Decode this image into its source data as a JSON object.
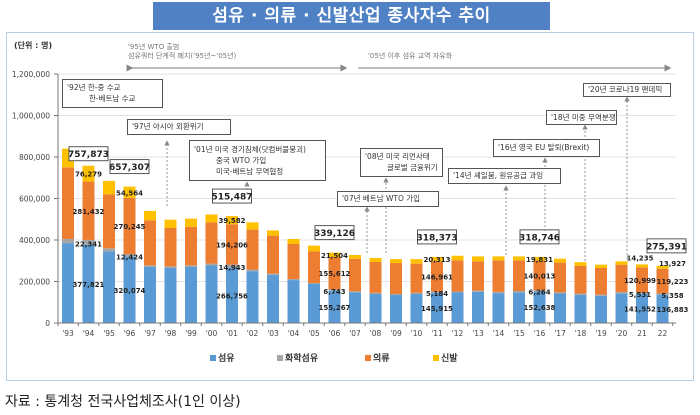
{
  "title": "섬유 · 의류 · 신발산업 종사자수 추이",
  "unit_label": "(단위 : 명)",
  "periods": [
    {
      "line1": "'95년 WTO 출범",
      "line2": "섬유쿼터 단계적 폐지('95년~'05년)"
    },
    {
      "line1": "'05년 이후 섬유 교역 자유화"
    }
  ],
  "annotations": {
    "a92": {
      "line1": "'92년 한-중 수교",
      "line2": "한-베트남 수교"
    },
    "a97": {
      "line1": "'97년 아시아 외환위기"
    },
    "a01": {
      "line1": "'01년 미국 경기침체(닷컴버블붕괴)",
      "line2": "중국 WTO 가입",
      "line3": "미국-베트남 무역협정"
    },
    "a07": {
      "line1": "'07년 베트남 WTO 가입"
    },
    "a08": {
      "line1": "'08년 미국 리먼사태",
      "line2": "글로벌 금융위기"
    },
    "a14": {
      "line1": "'14년 셰일붐, 원유공급 과잉"
    },
    "a16": {
      "line1": "'16년 영국 EU 탈퇴(Brexit)"
    },
    "a18": {
      "line1": "'18년 미중 무역분쟁"
    },
    "a20": {
      "line1": "'20년 코로나19 팬데믹"
    }
  },
  "legend": [
    {
      "label": "섬유",
      "color": "#5b9bd5"
    },
    {
      "label": "화학섬유",
      "color": "#a5a5a5"
    },
    {
      "label": "의류",
      "color": "#ed7d31"
    },
    {
      "label": "신발",
      "color": "#ffc000"
    }
  ],
  "source": "자료 : 통계청 전국사업체조사(1인 이상)",
  "chart_data": {
    "type": "bar",
    "stacked": true,
    "title": "섬유 · 의류 · 신발산업 종사자수 추이",
    "ylabel": "(단위 : 명)",
    "ylim": [
      0,
      1200000
    ],
    "y_ticks": [
      0,
      200000,
      400000,
      600000,
      800000,
      1000000,
      1200000
    ],
    "y_tick_labels": [
      "0",
      "200,000",
      "400,000",
      "600,000",
      "800,000",
      "1,000,000",
      "1,200,000"
    ],
    "grid": true,
    "legend_position": "bottom",
    "categories": [
      "'93",
      "'94",
      "'95",
      "'96",
      "'97",
      "'98",
      "'99",
      "'00",
      "'01",
      "'02",
      "'03",
      "'04",
      "'05",
      "'06",
      "'07",
      "'08",
      "'09",
      "'10",
      "'11",
      "'12",
      "'13",
      "'14",
      "'15",
      "'16",
      "'17",
      "'18",
      "'19",
      "'20",
      "21",
      "22"
    ],
    "series": [
      {
        "name": "섬유",
        "color": "#5b9bd5",
        "values": [
          385000,
          377821,
          345000,
          320074,
          270000,
          265000,
          270000,
          277000,
          266756,
          250000,
          232000,
          207000,
          188000,
          155267,
          148000,
          140000,
          135000,
          140000,
          145915,
          147000,
          150000,
          144000,
          148000,
          152638,
          142000,
          136000,
          131000,
          143000,
          141552,
          136883
        ]
      },
      {
        "name": "화학섬유",
        "color": "#a5a5a5",
        "values": [
          20000,
          22341,
          15000,
          12424,
          8000,
          8000,
          8000,
          9000,
          14943,
          7000,
          6000,
          5000,
          5000,
          6743,
          5000,
          5000,
          5000,
          5000,
          5184,
          5000,
          6000,
          6000,
          6000,
          6264,
          6000,
          6000,
          6000,
          6000,
          5531,
          5358
        ]
      },
      {
        "name": "의류",
        "color": "#ed7d31",
        "values": [
          345000,
          281432,
          260000,
          270245,
          217000,
          185000,
          185000,
          199000,
          194206,
          193000,
          183000,
          169000,
          152000,
          155612,
          156000,
          149000,
          149000,
          141000,
          146961,
          150000,
          141000,
          152000,
          148000,
          140013,
          143000,
          133000,
          128000,
          132000,
          120999,
          119223
        ]
      },
      {
        "name": "신발",
        "color": "#ffc000",
        "values": [
          90000,
          76279,
          65000,
          54564,
          45000,
          40000,
          40000,
          38000,
          39582,
          35000,
          25000,
          24000,
          28000,
          21504,
          19000,
          19000,
          19000,
          22000,
          20313,
          22000,
          24000,
          19000,
          19000,
          19831,
          19000,
          18000,
          16000,
          16000,
          14235,
          13927
        ]
      }
    ],
    "data_labels": [
      {
        "category": "'94",
        "values": [
          "377,821",
          "22,341",
          "281,432",
          "76,279"
        ],
        "total": "757,873"
      },
      {
        "category": "'96",
        "values": [
          "320,074",
          "12,424",
          "270,245",
          "54,564"
        ],
        "total": "657,307"
      },
      {
        "category": "'01",
        "values": [
          "266,756",
          "14,943",
          "194,206",
          "39,582"
        ],
        "total": "515,487"
      },
      {
        "category": "'06",
        "values": [
          "155,267",
          "6,743",
          "155,612",
          "21,504"
        ],
        "total": "339,126"
      },
      {
        "category": "'11",
        "values": [
          "145,915",
          "5,184",
          "146,961",
          "20,313"
        ],
        "total": "318,373"
      },
      {
        "category": "'16",
        "values": [
          "152,638",
          "6,264",
          "140,013",
          "19,831"
        ],
        "total": "318,746"
      },
      {
        "category": "21",
        "values": [
          "141,552",
          "5,531",
          "120,999",
          "14,235"
        ]
      },
      {
        "category": "22",
        "values": [
          "136,883",
          "5,358",
          "119,223",
          "13,927"
        ],
        "total": "275,391"
      }
    ]
  }
}
